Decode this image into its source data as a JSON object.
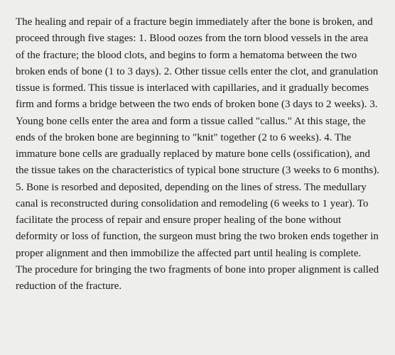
{
  "document": {
    "text": "The healing and repair of a fracture begin immediately after the bone is broken, and proceed through five stages: 1. Blood oozes from the torn blood vessels in the area of the fracture; the blood clots, and begins to form a hematoma between the two broken ends of bone (1 to 3 days). 2. Other tissue cells enter the clot, and granulation tissue is formed. This tissue is interlaced with capillaries, and it gradually becomes firm and forms a bridge between the two ends of broken bone (3 days to 2 weeks). 3. Young bone cells enter the area and form a tissue called \"callus.\" At this stage, the ends of the broken bone are beginning to \"knit\" together (2 to 6 weeks). 4. The immature bone cells are gradually replaced by mature bone cells (ossification), and the tissue takes on the characteristics of typical bone structure (3 weeks to 6 months). 5. Bone is resorbed and deposited, depending on the lines of stress. The medullary canal is reconstructed during consolidation and remodeling (6 weeks to 1 year). To facilitate the process of repair and ensure proper healing of the bone without deformity or loss of function, the surgeon must bring the two broken ends together in proper alignment and then immobilize the affected part until healing is complete. The procedure for bringing the two fragments of bone into proper alignment is called reduction of the fracture.",
    "background_color": "#eeeeec",
    "text_color": "#1a1a1a",
    "font_family": "Georgia, 'Times New Roman', serif",
    "font_size": 15,
    "line_height": 1.55
  }
}
